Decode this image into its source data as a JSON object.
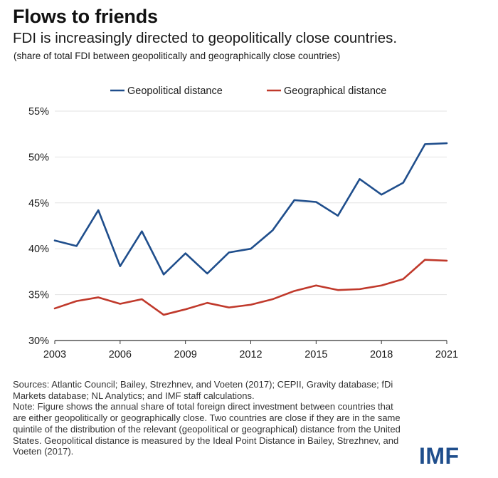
{
  "header": {
    "title": "Flows to friends",
    "subtitle": "FDI is increasingly directed to geopolitically close countries.",
    "note": "(share of total FDI between geopolitically and geographically close countries)"
  },
  "chart_data": {
    "type": "line",
    "x": [
      2003,
      2004,
      2005,
      2006,
      2007,
      2008,
      2009,
      2010,
      2011,
      2012,
      2013,
      2014,
      2015,
      2016,
      2017,
      2018,
      2019,
      2020,
      2021
    ],
    "xticks": [
      2003,
      2006,
      2009,
      2012,
      2015,
      2018,
      2021
    ],
    "xtick_labels": [
      "2003",
      "2006",
      "2009",
      "2012",
      "2015",
      "2018",
      "2021"
    ],
    "xlim": [
      2003,
      2021
    ],
    "ylim": [
      30,
      55
    ],
    "yticks": [
      30,
      35,
      40,
      45,
      50,
      55
    ],
    "ytick_labels": [
      "30%",
      "35%",
      "40%",
      "45%",
      "50%",
      "55%"
    ],
    "grid": "horizontal",
    "legend_position": "top",
    "series": [
      {
        "name": "Geopolitical distance",
        "color": "#1f4e8c",
        "values": [
          40.9,
          40.3,
          44.2,
          38.1,
          41.9,
          37.2,
          39.5,
          37.3,
          39.6,
          40.0,
          42.0,
          45.3,
          45.1,
          43.6,
          47.6,
          45.9,
          47.2,
          51.4,
          51.5
        ]
      },
      {
        "name": "Geographical distance",
        "color": "#c0392b",
        "values": [
          33.5,
          34.3,
          34.7,
          34.0,
          34.5,
          32.8,
          33.4,
          34.1,
          33.6,
          33.9,
          34.5,
          35.4,
          36.0,
          35.5,
          35.6,
          36.0,
          36.7,
          38.8,
          38.7
        ]
      }
    ]
  },
  "footer": {
    "sources": "Sources: Atlantic Council; Bailey, Strezhnev, and Voeten (2017); CEPII, Gravity database; fDi Markets database; NL Analytics; and IMF staff calculations.",
    "note": "Note: Figure shows the annual share of total foreign direct investment between countries that are either geopolitically or geographically close. Two countries are close if they are in the same quintile of the distribution of the relevant (geopolitical or geographical) distance from the United States. Geopolitical distance is measured by the Ideal Point Distance in Bailey, Strezhnev, and Voeten (2017)."
  },
  "logo": {
    "text": "IMF",
    "color": "#1f4e8c"
  }
}
